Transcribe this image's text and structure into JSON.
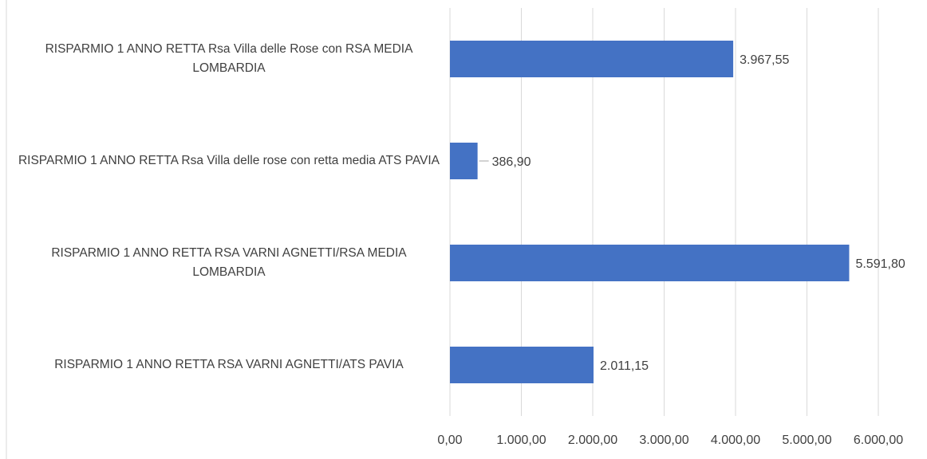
{
  "chart_data": {
    "type": "bar",
    "orientation": "horizontal",
    "categories": [
      "RISPARMIO 1 ANNO RETTA Rsa Villa delle Rose con RSA MEDIA LOMBARDIA",
      "RISPARMIO 1 ANNO RETTA Rsa Villa delle rose con retta media ATS PAVIA",
      "RISPARMIO 1 ANNO RETTA RSA VARNI AGNETTI/RSA MEDIA LOMBARDIA",
      "RISPARMIO 1 ANNO RETTA RSA VARNI AGNETTI/ATS PAVIA"
    ],
    "values": [
      3967.55,
      386.9,
      5591.8,
      2011.15
    ],
    "value_labels": [
      "3.967,55",
      "386,90",
      "5.591,80",
      "2.011,15"
    ],
    "color": "#4472c4",
    "xlim": [
      0,
      6000
    ],
    "xticks": [
      {
        "value": 0,
        "label": "0,00"
      },
      {
        "value": 1000,
        "label": "1.000,00"
      },
      {
        "value": 2000,
        "label": "2.000,00"
      },
      {
        "value": 3000,
        "label": "3.000,00"
      },
      {
        "value": 4000,
        "label": "4.000,00"
      },
      {
        "value": 5000,
        "label": "5.000,00"
      },
      {
        "value": 6000,
        "label": "6.000,00"
      }
    ],
    "grid": true
  }
}
